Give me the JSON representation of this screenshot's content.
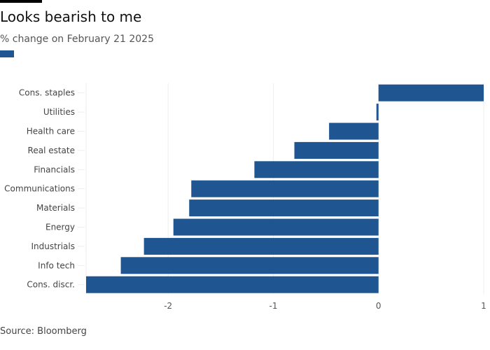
{
  "title": "Looks bearish to me",
  "subtitle": "% change on February 21 2025",
  "source": "Source: Bloomberg",
  "chart_data": {
    "type": "bar",
    "orientation": "horizontal",
    "title": "Looks bearish to me",
    "subtitle": "% change on February 21 2025",
    "xlabel": "",
    "ylabel": "",
    "categories": [
      "Cons. staples",
      "Utilities",
      "Health care",
      "Real estate",
      "Financials",
      "Communications",
      "Materials",
      "Energy",
      "Industrials",
      "Info tech",
      "Cons. discr."
    ],
    "values": [
      1.0,
      -0.02,
      -0.47,
      -0.8,
      -1.18,
      -1.78,
      -1.8,
      -1.95,
      -2.23,
      -2.45,
      -2.78
    ],
    "xlim": [
      -2.78,
      1
    ],
    "xticks": [
      "-2",
      "-1",
      "0",
      "1"
    ],
    "grid": "vertical",
    "legend": "top-left swatch",
    "color": "#1f5591"
  }
}
